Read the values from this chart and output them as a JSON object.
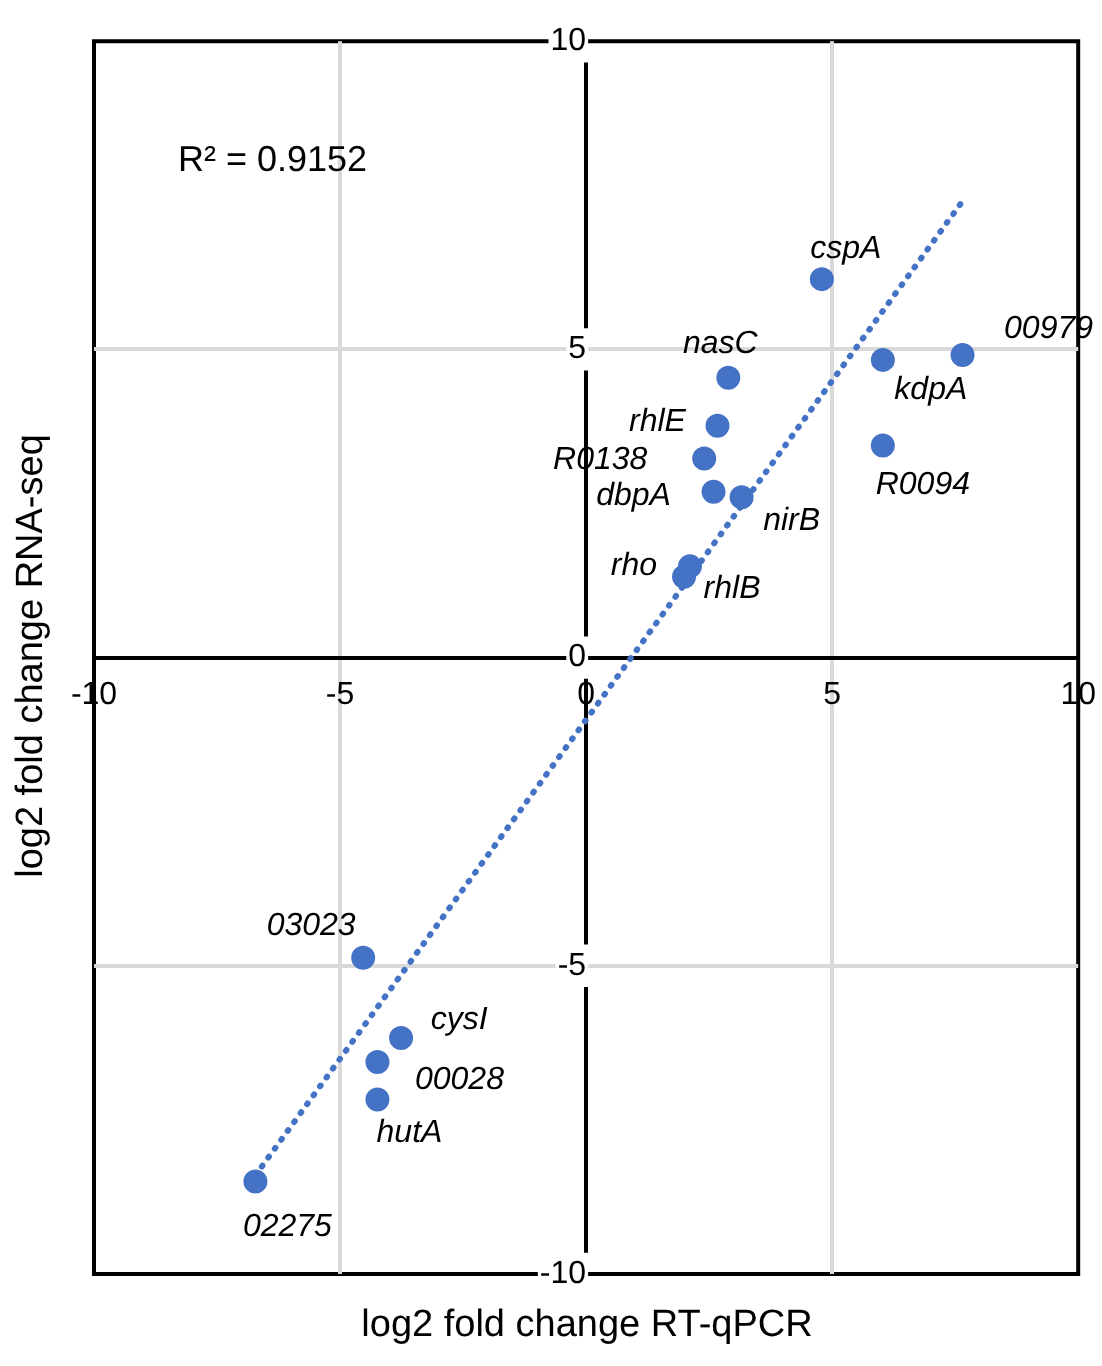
{
  "chart_data": {
    "type": "scatter",
    "xlabel": "log2 fold change RT-qPCR",
    "ylabel": "log2 fold change RNA-seq",
    "xlim": [
      -10,
      10
    ],
    "xticks": [
      -10,
      -5,
      0,
      5,
      10
    ],
    "ylim": [
      -10,
      10
    ],
    "yticks": [
      -10,
      -5,
      0,
      5,
      10
    ],
    "grid": true,
    "legend": false,
    "series": [
      {
        "type": "scatter",
        "color": "#4472c4",
        "marker": "circle",
        "x": [
          4.79,
          2.89,
          2.67,
          2.4,
          2.59,
          3.16,
          2.11,
          1.99,
          6.03,
          7.65,
          6.03,
          -4.53,
          -3.76,
          -4.24,
          -4.24,
          -6.72
        ],
        "values": [
          6.14,
          4.54,
          3.76,
          3.23,
          2.69,
          2.6,
          1.48,
          1.31,
          4.83,
          4.91,
          3.44,
          -4.87,
          -6.17,
          -6.56,
          -7.17,
          -8.5
        ]
      },
      {
        "type": "line",
        "color": "#4472c4",
        "marker": "none",
        "line_style": "dotted",
        "x": [
          -6.72,
          7.7
        ],
        "values": [
          -8.4,
          7.46
        ]
      }
    ],
    "annotations": [
      "R² = 0.9152",
      {
        "text": "cspA",
        "x": 4.79,
        "y": 6.14
      },
      {
        "text": "nasC",
        "x": 2.89,
        "y": 4.54
      },
      {
        "text": "rhlE",
        "x": 2.67,
        "y": 3.76
      },
      {
        "text": "R0138",
        "x": 2.4,
        "y": 3.23
      },
      {
        "text": "dbpA",
        "x": 2.59,
        "y": 2.69
      },
      {
        "text": "nirB",
        "x": 3.16,
        "y": 2.6
      },
      {
        "text": "rho",
        "x": 2.11,
        "y": 1.48
      },
      {
        "text": "rhlB",
        "x": 1.99,
        "y": 1.31
      },
      {
        "text": "kdpA",
        "x": 6.03,
        "y": 4.83
      },
      {
        "text": "00979",
        "x": 7.65,
        "y": 4.91
      },
      {
        "text": "R0094",
        "x": 6.03,
        "y": 3.44
      },
      {
        "text": "03023",
        "x": -4.53,
        "y": -4.87
      },
      {
        "text": "cysI",
        "x": -3.76,
        "y": -6.17
      },
      {
        "text": "00028",
        "x": -4.24,
        "y": -6.56
      },
      {
        "text": "hutA",
        "x": -4.24,
        "y": -7.17
      },
      {
        "text": "02275",
        "x": -6.72,
        "y": -8.5
      }
    ]
  }
}
